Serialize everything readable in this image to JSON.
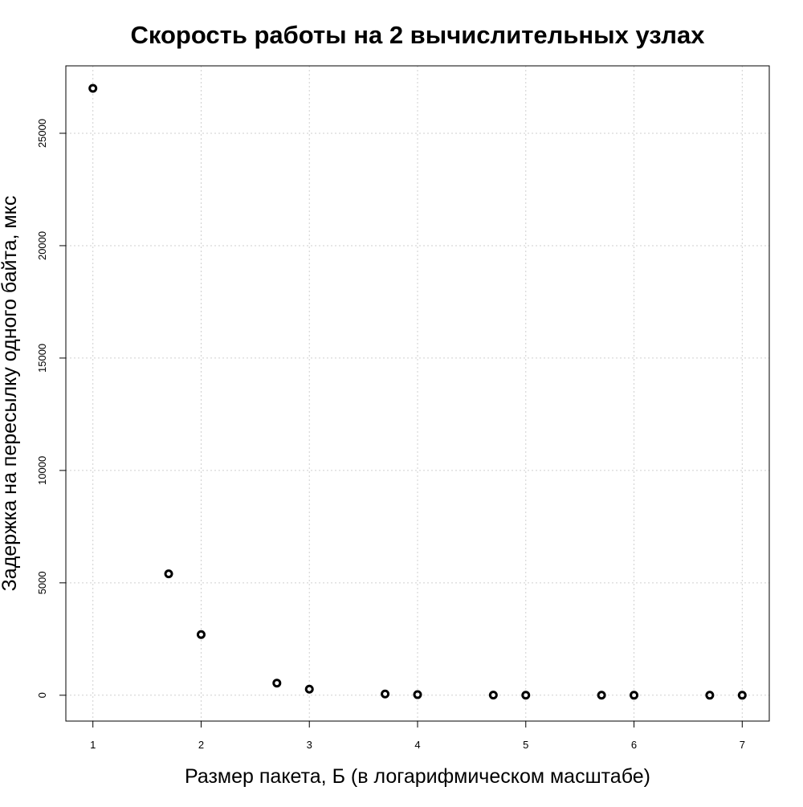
{
  "chart_data": {
    "type": "scatter",
    "title": "Скорость работы на 2 вычислительных узлах",
    "xlabel": "Размер пакета, Б (в логарифмическом масштабе)",
    "ylabel": "Задержка на пересылку одного байта, мкс",
    "xlim": [
      0.75,
      7.25
    ],
    "ylim": [
      -1150,
      28000
    ],
    "x_ticks": [
      1,
      2,
      3,
      4,
      5,
      6,
      7
    ],
    "x_tick_labels": [
      "1",
      "2",
      "3",
      "4",
      "5",
      "6",
      "7"
    ],
    "y_ticks": [
      0,
      5000,
      10000,
      15000,
      20000,
      25000
    ],
    "y_tick_labels": [
      "0",
      "5000",
      "10000",
      "15000",
      "20000",
      "25000"
    ],
    "grid": true,
    "legend": "none",
    "point_color": "#000000",
    "grid_color": "#cfcfcf",
    "series": [
      {
        "x": [
          1,
          1.7,
          2,
          2.7,
          3,
          3.7,
          4,
          4.7,
          5,
          5.7,
          6,
          6.7,
          7
        ],
        "y": [
          27000,
          5400,
          2700,
          540,
          270,
          54,
          27,
          5.4,
          2.7,
          0.54,
          0.27,
          0.054,
          0.027
        ]
      }
    ]
  }
}
